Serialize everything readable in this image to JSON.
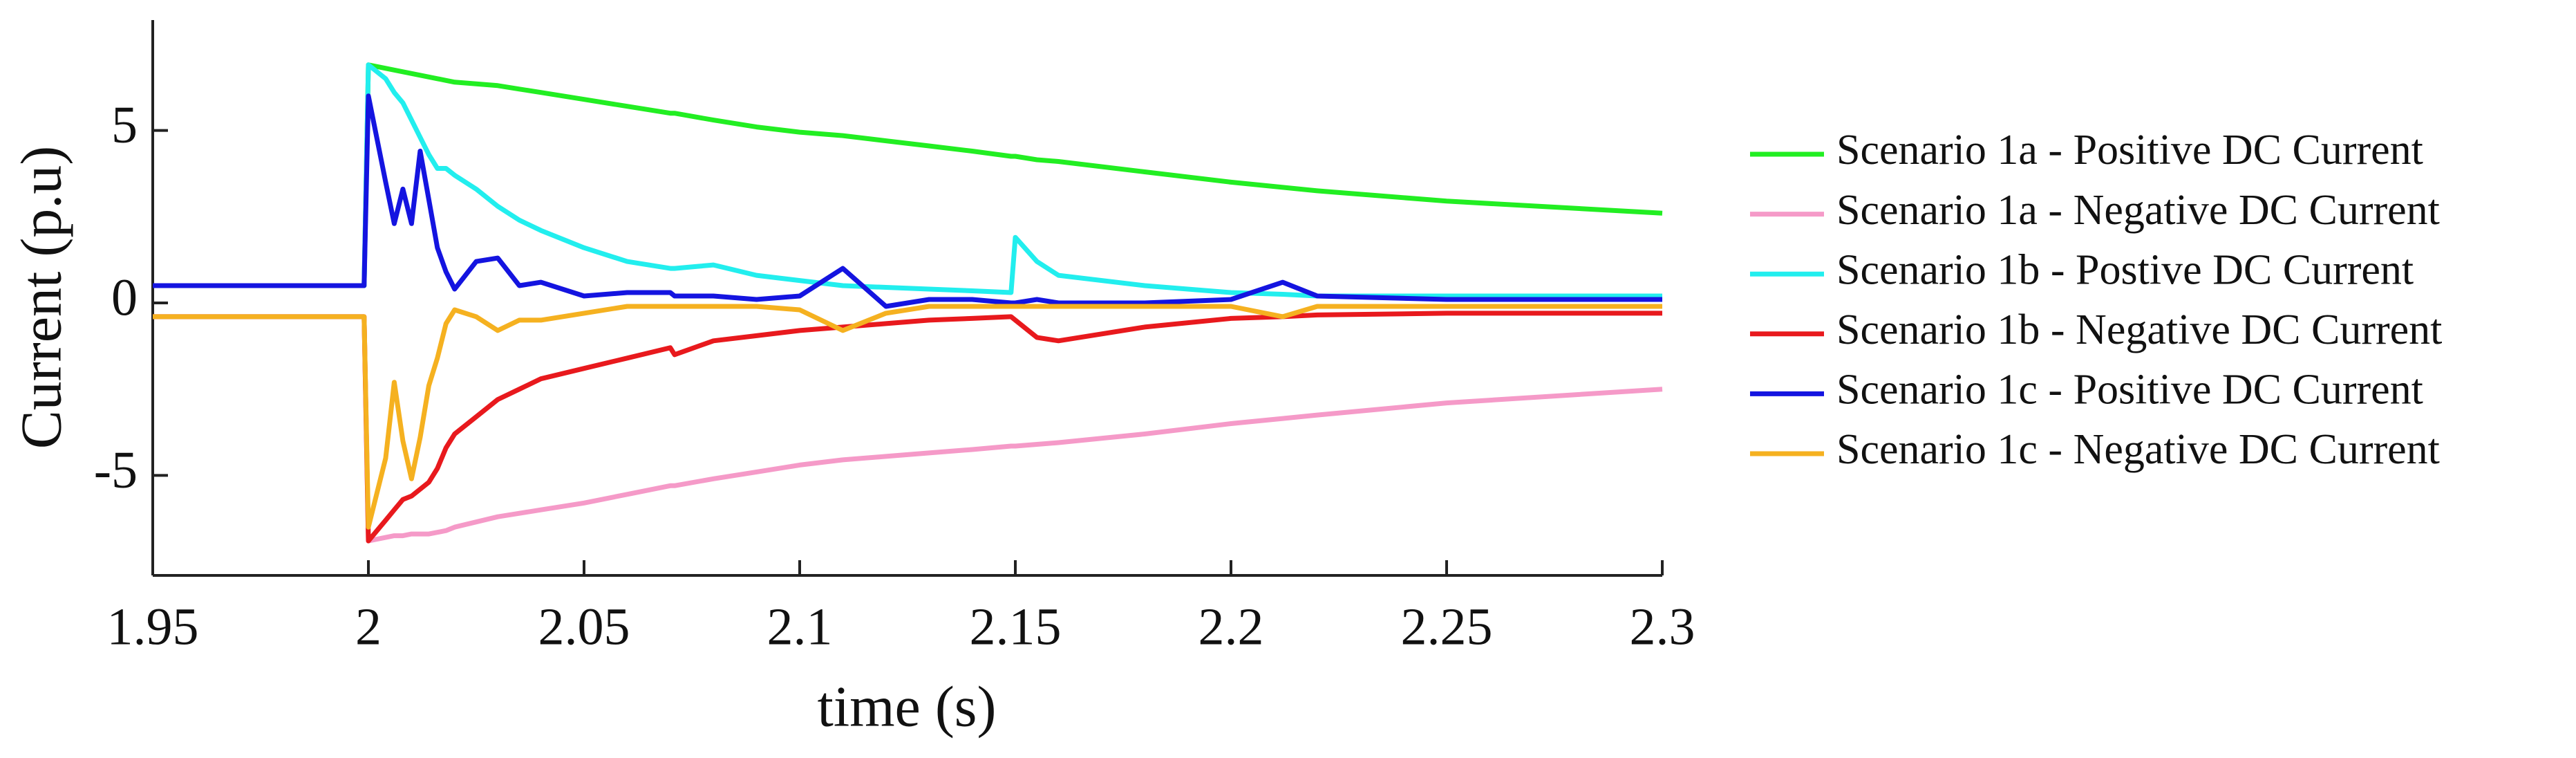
{
  "chart_data": {
    "type": "line",
    "x_label": "time (s)",
    "y_label": "Current (p.u)",
    "x": [
      1.95,
      1.999,
      2.0,
      2.004,
      2.006,
      2.008,
      2.01,
      2.012,
      2.014,
      2.016,
      2.018,
      2.02,
      2.025,
      2.03,
      2.035,
      2.04,
      2.05,
      2.06,
      2.07,
      2.071,
      2.08,
      2.09,
      2.1,
      2.11,
      2.12,
      2.13,
      2.14,
      2.149,
      2.15,
      2.155,
      2.16,
      2.18,
      2.2,
      2.212,
      2.22,
      2.25,
      2.3
    ],
    "series": [
      {
        "name": "Scenario 1a - Positive DC Current",
        "color": "#22ee22",
        "values": [
          0.5,
          0.5,
          6.9,
          6.8,
          6.75,
          6.7,
          6.65,
          6.6,
          6.55,
          6.5,
          6.45,
          6.4,
          6.35,
          6.3,
          6.2,
          6.1,
          5.9,
          5.7,
          5.5,
          5.5,
          5.3,
          5.1,
          4.95,
          4.85,
          4.7,
          4.55,
          4.4,
          4.25,
          4.25,
          4.15,
          4.1,
          3.8,
          3.5,
          3.35,
          3.25,
          2.95,
          2.6
        ]
      },
      {
        "name": "Scenario 1a - Negative DC Current",
        "color": "#f59ac8",
        "values": [
          -0.4,
          -0.4,
          -6.9,
          -6.8,
          -6.75,
          -6.75,
          -6.7,
          -6.7,
          -6.7,
          -6.65,
          -6.6,
          -6.5,
          -6.35,
          -6.2,
          -6.1,
          -6.0,
          -5.8,
          -5.55,
          -5.3,
          -5.3,
          -5.1,
          -4.9,
          -4.7,
          -4.55,
          -4.45,
          -4.35,
          -4.25,
          -4.15,
          -4.15,
          -4.1,
          -4.05,
          -3.8,
          -3.5,
          -3.35,
          -3.25,
          -2.9,
          -2.5
        ]
      },
      {
        "name": "Scenario 1b - Postive DC Current",
        "color": "#22eeee",
        "values": [
          0.5,
          0.5,
          6.9,
          6.5,
          6.1,
          5.8,
          5.3,
          4.8,
          4.3,
          3.9,
          3.9,
          3.7,
          3.3,
          2.8,
          2.4,
          2.1,
          1.6,
          1.2,
          1.0,
          1.0,
          1.1,
          0.8,
          0.65,
          0.5,
          0.45,
          0.4,
          0.35,
          0.3,
          1.9,
          1.2,
          0.8,
          0.5,
          0.3,
          0.25,
          0.2,
          0.2,
          0.2
        ]
      },
      {
        "name": "Scenario 1b - Negative DC Current",
        "color": "#e8191d",
        "values": [
          -0.4,
          -0.4,
          -6.9,
          -6.3,
          -6.0,
          -5.7,
          -5.6,
          -5.4,
          -5.2,
          -4.8,
          -4.2,
          -3.8,
          -3.3,
          -2.8,
          -2.5,
          -2.2,
          -1.9,
          -1.6,
          -1.3,
          -1.5,
          -1.1,
          -0.95,
          -0.8,
          -0.7,
          -0.6,
          -0.5,
          -0.45,
          -0.4,
          -0.5,
          -1.0,
          -1.1,
          -0.7,
          -0.45,
          -0.4,
          -0.35,
          -0.3,
          -0.3
        ]
      },
      {
        "name": "Scenario 1c - Positive DC Current",
        "color": "#1414e0",
        "values": [
          0.5,
          0.5,
          6.0,
          3.5,
          2.3,
          3.3,
          2.3,
          4.4,
          3.0,
          1.6,
          0.9,
          0.4,
          1.2,
          1.3,
          0.5,
          0.6,
          0.2,
          0.3,
          0.3,
          0.2,
          0.2,
          0.1,
          0.2,
          1.0,
          -0.1,
          0.1,
          0.1,
          0.0,
          0.0,
          0.1,
          0.0,
          0.0,
          0.1,
          0.6,
          0.2,
          0.1,
          0.1
        ]
      },
      {
        "name": "Scenario 1c - Negative DC Current",
        "color": "#f5b120",
        "values": [
          -0.4,
          -0.4,
          -6.5,
          -4.5,
          -2.3,
          -4.0,
          -5.1,
          -3.9,
          -2.4,
          -1.6,
          -0.6,
          -0.2,
          -0.4,
          -0.8,
          -0.5,
          -0.5,
          -0.3,
          -0.1,
          -0.1,
          -0.1,
          -0.1,
          -0.1,
          -0.2,
          -0.8,
          -0.3,
          -0.1,
          -0.1,
          -0.1,
          -0.1,
          -0.1,
          -0.1,
          -0.1,
          -0.1,
          -0.4,
          -0.1,
          -0.1,
          -0.1
        ]
      }
    ],
    "xlim": [
      1.95,
      2.3
    ],
    "xticks": [
      1.95,
      2,
      2.05,
      2.1,
      2.15,
      2.2,
      2.25,
      2.3
    ],
    "ylim": [
      -7.9,
      8.2
    ],
    "yticks": [
      -5,
      0,
      5
    ],
    "legend": "right"
  }
}
